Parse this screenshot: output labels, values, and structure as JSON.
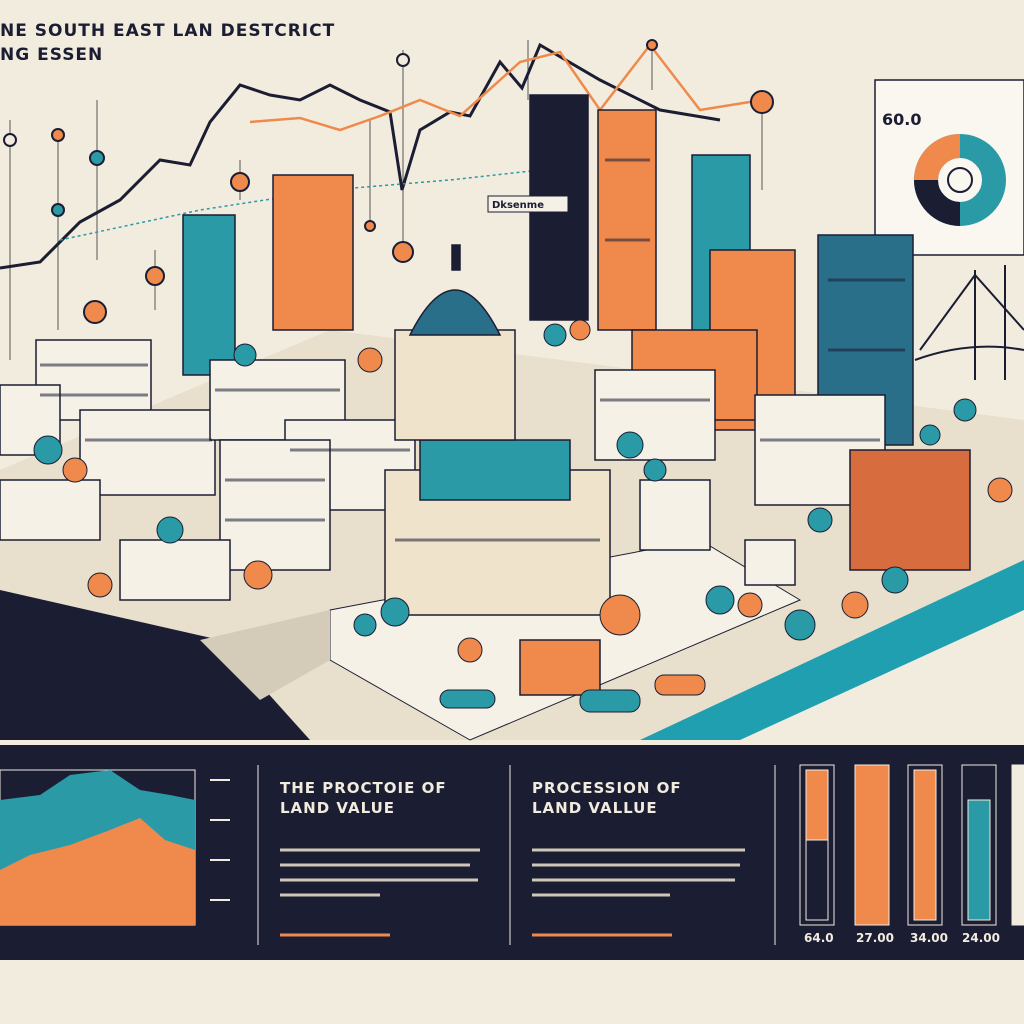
{
  "header": {
    "title": "NE SOUTH EAST LAN DESTCRICT",
    "subtitle": "NG ESSEN"
  },
  "sign": "Dksenme",
  "donut_label": "60.0",
  "panels": [
    {
      "title": "THE PROCTOIE OF",
      "subtitle": "LAND VALUE"
    },
    {
      "title": "PROCESSION OF",
      "subtitle": "LAND VALLUE"
    }
  ],
  "bar_labels": [
    "64.0",
    "27.00",
    "34.00",
    "24.00"
  ]
}
